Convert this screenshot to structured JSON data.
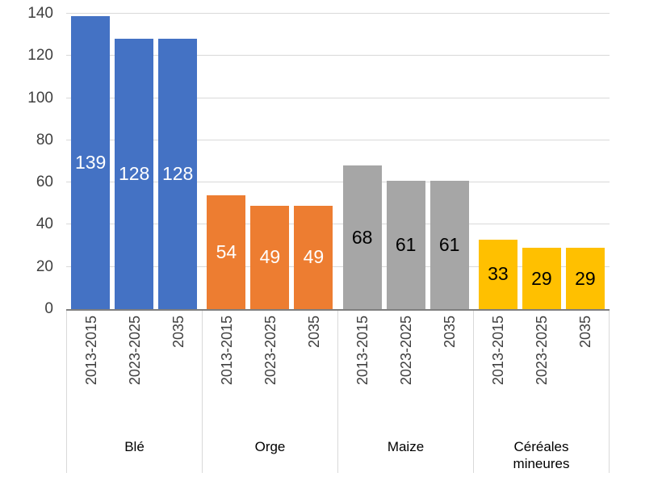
{
  "chart_data": {
    "type": "bar",
    "title": "",
    "xlabel": "",
    "ylabel": "",
    "ylim": [
      0,
      140
    ],
    "yticks": [
      0,
      20,
      40,
      60,
      80,
      100,
      120,
      140
    ],
    "grid": true,
    "legend": false,
    "sub_categories": [
      "2013-2015",
      "2023-2025",
      "2035"
    ],
    "categories": [
      "Blé",
      "Orge",
      "Maize",
      "Céréales mineures"
    ],
    "groups": [
      {
        "label": "Blé",
        "color": "#4472C4",
        "value_color": "#FFFFFF",
        "values": [
          139,
          128,
          128
        ]
      },
      {
        "label": "Orge",
        "color": "#ED7D31",
        "value_color": "#FFFFFF",
        "values": [
          54,
          49,
          49
        ]
      },
      {
        "label": "Maize",
        "color": "#A6A6A6",
        "value_color": "#000000",
        "values": [
          68,
          61,
          61
        ]
      },
      {
        "label": "Céréales mineures",
        "color": "#FFC000",
        "value_color": "#000000",
        "values": [
          33,
          29,
          29
        ]
      }
    ],
    "axis_style": {
      "axis_line_color": "#7f7f7f",
      "grid_color": "#d9d9d9",
      "tick_label_color": "#404040"
    }
  }
}
